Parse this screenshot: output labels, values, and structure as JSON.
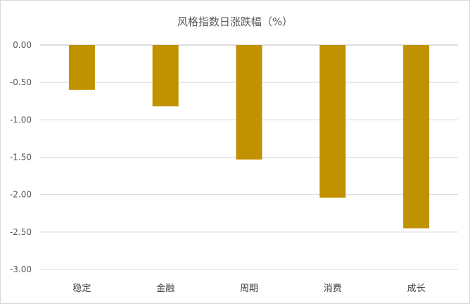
{
  "chart_data": {
    "type": "bar",
    "title": "风格指数日涨跌幅（%）",
    "categories": [
      "稳定",
      "金融",
      "周期",
      "消费",
      "成长"
    ],
    "values": [
      -0.6,
      -0.82,
      -1.53,
      -2.04,
      -2.45
    ],
    "ylim": [
      -3.0,
      0.0
    ],
    "yticks": [
      "0.00",
      "-0.50",
      "-1.00",
      "-1.50",
      "-2.00",
      "-2.50",
      "-3.00"
    ],
    "ytick_values": [
      0.0,
      -0.5,
      -1.0,
      -1.5,
      -2.0,
      -2.5,
      -3.0
    ],
    "bar_color": "#c09200",
    "grid": true,
    "legend": "none"
  }
}
